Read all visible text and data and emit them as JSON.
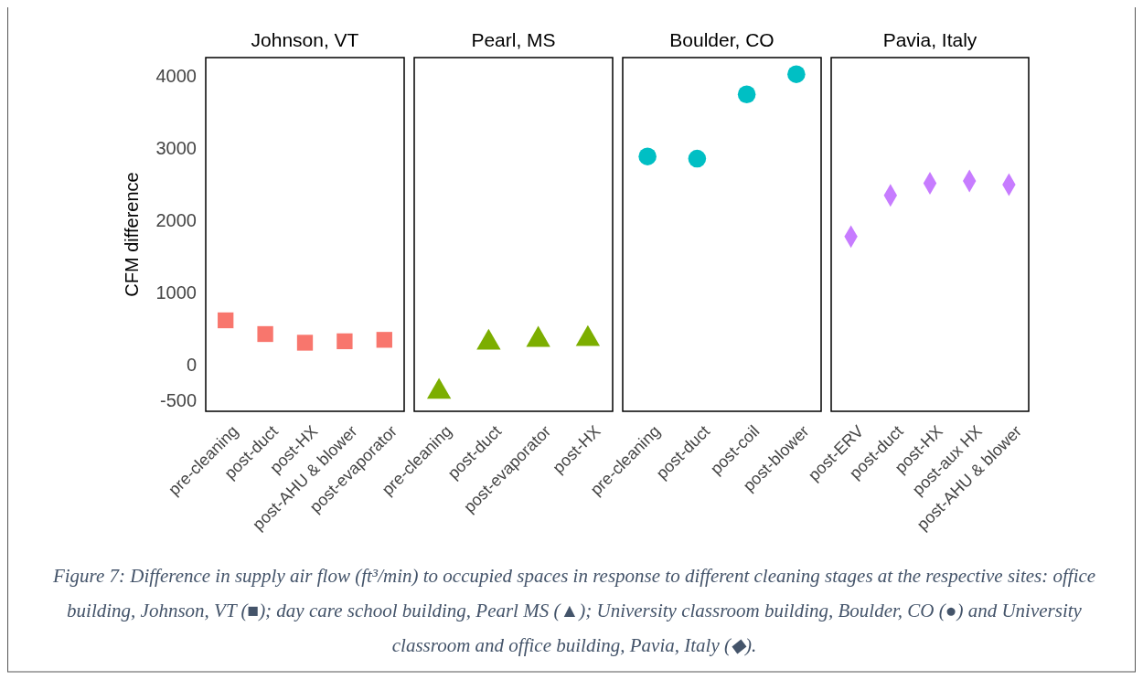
{
  "chart_data": [
    {
      "type": "scatter",
      "title": "Johnson, VT",
      "ylabel": "CFM difference",
      "categories": [
        "pre-cleaning",
        "post-duct",
        "post-HX",
        "post-AHU & blower",
        "post-evaporator"
      ],
      "values": [
        610,
        420,
        300,
        320,
        340
      ],
      "color": "#f8766d",
      "marker": "square",
      "ylim": [
        -650,
        4250
      ],
      "yticks": [
        -500,
        0,
        1000,
        2000,
        3000,
        4000
      ],
      "annotations": [
        "Figure 7: Difference in supply air flow (ft³/min) to occupied spaces in response to different cleaning stages at the respective sites: office building, Johnson, VT (■); day care school building, Pearl MS (▲); University classroom building, Boulder, CO (●) and University classroom and office building, Pavia, Italy (◆)."
      ]
    },
    {
      "type": "scatter",
      "title": "Pearl, MS",
      "categories": [
        "pre-cleaning",
        "post-duct",
        "post-evaporator",
        "post-HX"
      ],
      "values": [
        -380,
        300,
        340,
        350
      ],
      "color": "#7cae00",
      "marker": "triangle",
      "ylim": [
        -650,
        4250
      ],
      "tick_labels": "x"
    },
    {
      "type": "scatter",
      "title": "Boulder, CO",
      "categories": [
        "pre-cleaning",
        "post-duct",
        "post-coil",
        "post-blower"
      ],
      "values": [
        2880,
        2850,
        3740,
        4020
      ],
      "color": "#00bfc4",
      "marker": "circle",
      "ylim": [
        -650,
        4250
      ],
      "tick_labels": "x"
    },
    {
      "type": "scatter",
      "title": "Pavia, Italy",
      "categories": [
        "post-ERV",
        "post-duct",
        "post-HX",
        "post-aux HX",
        "post-AHU & blower"
      ],
      "values": [
        1770,
        2340,
        2510,
        2540,
        2490
      ],
      "color": "#c77cff",
      "marker": "diamond",
      "ylim": [
        -650,
        4250
      ],
      "tick_labels": "x"
    }
  ]
}
